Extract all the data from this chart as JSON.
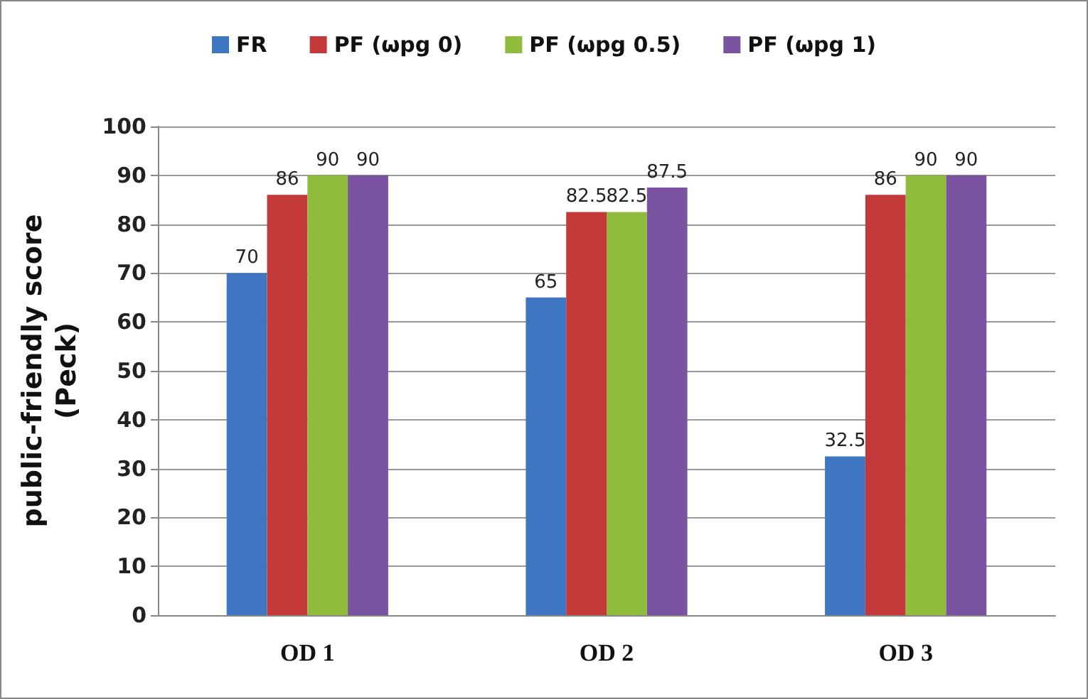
{
  "chart_data": {
    "type": "bar",
    "ylabel": "public-friendly score\n(Peck)",
    "categories": [
      "OD 1",
      "OD 2",
      "OD 3"
    ],
    "series": [
      {
        "name": "FR",
        "color": "#3f76c1",
        "values": [
          70,
          65,
          32.5
        ]
      },
      {
        "name": "PF (ωpg 0)",
        "color": "#c4393a",
        "values": [
          86,
          82.5,
          86
        ]
      },
      {
        "name": "PF (ωpg 0.5)",
        "color": "#8fbc3c",
        "values": [
          90,
          82.5,
          90
        ]
      },
      {
        "name": "PF (ωpg 1)",
        "color": "#7a54a0",
        "values": [
          90,
          87.5,
          90
        ]
      }
    ],
    "ylim": [
      0,
      100
    ],
    "yticks": [
      0,
      10,
      20,
      30,
      40,
      50,
      60,
      70,
      80,
      90,
      100
    ],
    "grid": "y",
    "legend": "top",
    "data_labels": true
  }
}
